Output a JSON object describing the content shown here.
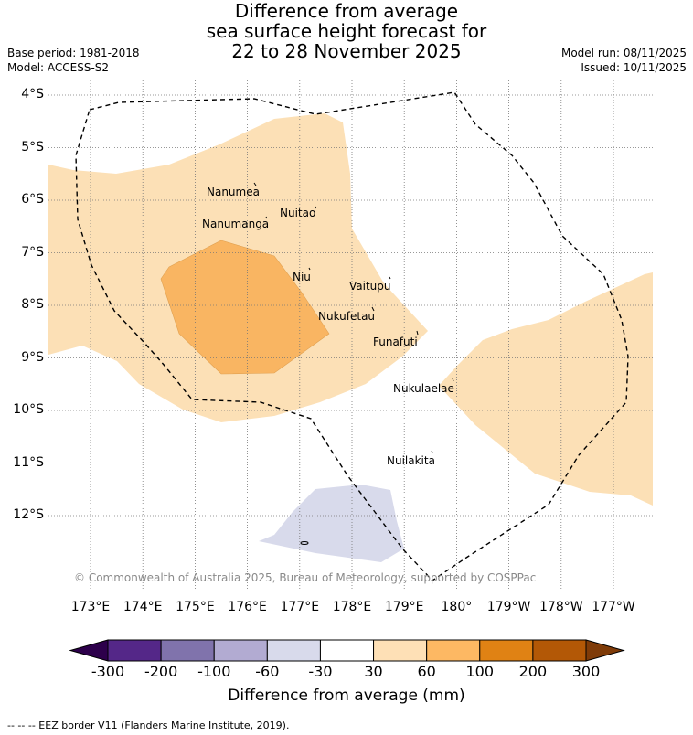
{
  "title": {
    "line1": "Difference from average",
    "line2": "sea surface height forecast for",
    "line3": "22 to 28 November 2025"
  },
  "meta": {
    "base_period": "Base period: 1981-2018",
    "model": "Model: ACCESS-S2",
    "model_run": "Model run: 08/11/2025",
    "issued": "Issued: 10/11/2025"
  },
  "axes": {
    "lat_labels": [
      "4°S",
      "5°S",
      "6°S",
      "7°S",
      "8°S",
      "9°S",
      "10°S",
      "11°S",
      "12°S"
    ],
    "lon_labels": [
      "173°E",
      "174°E",
      "175°E",
      "176°E",
      "177°E",
      "178°E",
      "179°E",
      "180°",
      "179°W",
      "178°W",
      "177°W"
    ]
  },
  "places": {
    "nanumea": "Nanumea",
    "nanumanga": "Nanumanga",
    "nuitao": "Nuitao",
    "niu": "Niu",
    "vaitupu": "Vaitupu",
    "nukufetau": "Nukufetau",
    "funafuti": "Funafuti",
    "nukulaelae": "Nukulaelae",
    "nuilakita": "Nuilakita"
  },
  "copyright": "© Commonwealth of Australia 2025, Bureau of Meteorology, supported by COSPPac",
  "colorbar": {
    "ticks": [
      "-300",
      "-200",
      "-100",
      "-60",
      "-30",
      "30",
      "60",
      "100",
      "200",
      "300"
    ],
    "colors": [
      "#2d004b",
      "#542788",
      "#8073ac",
      "#b2abd2",
      "#d8daeb",
      "#ffffff",
      "#fee0b6",
      "#fdb863",
      "#e08214",
      "#b35806",
      "#7f3b08"
    ],
    "label": "Difference from average (mm)"
  },
  "map_colors": {
    "band_30_60": "#fce0b6",
    "band_60_100": "#f9b562",
    "band_neg_30_60": "#d8daeb"
  },
  "footer": "--  --  -- EEZ border V11 (Flanders Marine Institute, 2019)."
}
